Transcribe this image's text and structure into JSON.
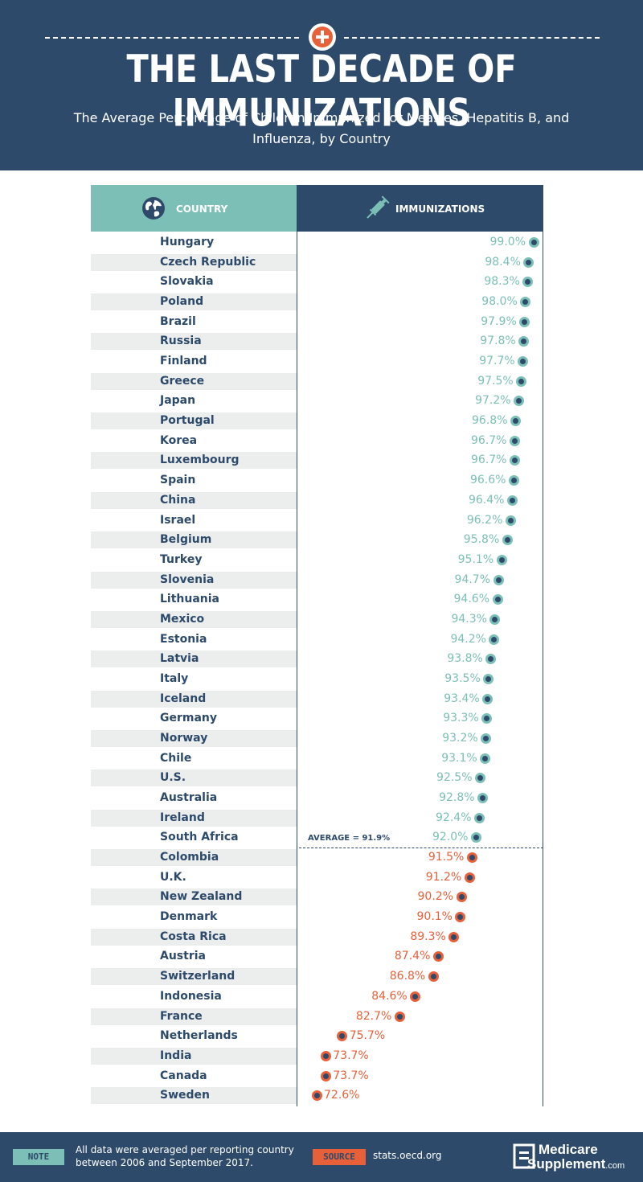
{
  "header": {
    "title": "THE LAST DECADE OF IMMUNIZATIONS",
    "subtitle": "The Average Percentage of Children Immunized for Measles, Hepatitis B, and Influenza, by Country"
  },
  "table": {
    "country_header": "COUNTRY",
    "immunizations_header": "IMMUNIZATIONS",
    "average_label": "AVERAGE = 91.9%"
  },
  "colors": {
    "navy": "#2d4a6b",
    "teal": "#7bbfb6",
    "orange": "#e8603a",
    "above_average": "#7bbfb6",
    "below_average": "#e8603a"
  },
  "chart_data": {
    "type": "scatter",
    "title": "THE LAST DECADE OF IMMUNIZATIONS",
    "subtitle": "The Average Percentage of Children Immunized for Measles, Hepatitis B, and Influenza, by Country",
    "average": 91.9,
    "unit": "%",
    "categories": [
      "Hungary",
      "Czech Republic",
      "Slovakia",
      "Poland",
      "Brazil",
      "Russia",
      "Finland",
      "Greece",
      "Japan",
      "Portugal",
      "Korea",
      "Luxembourg",
      "Spain",
      "China",
      "Israel",
      "Belgium",
      "Turkey",
      "Slovenia",
      "Lithuania",
      "Mexico",
      "Estonia",
      "Latvia",
      "Italy",
      "Iceland",
      "Germany",
      "Norway",
      "Chile",
      "U.S.",
      "Australia",
      "Ireland",
      "South Africa",
      "Colombia",
      "U.K.",
      "New Zealand",
      "Denmark",
      "Costa Rica",
      "Austria",
      "Switzerland",
      "Indonesia",
      "France",
      "Netherlands",
      "India",
      "Canada",
      "Sweden"
    ],
    "values": [
      99.0,
      98.4,
      98.3,
      98.0,
      97.9,
      97.8,
      97.7,
      97.5,
      97.2,
      96.8,
      96.7,
      96.7,
      96.6,
      96.4,
      96.2,
      95.8,
      95.1,
      94.7,
      94.6,
      94.3,
      94.2,
      93.8,
      93.5,
      93.4,
      93.3,
      93.2,
      93.1,
      92.5,
      92.8,
      92.4,
      92.0,
      91.5,
      91.2,
      90.2,
      90.1,
      89.3,
      87.4,
      86.8,
      84.6,
      82.7,
      75.7,
      73.7,
      73.7,
      72.6
    ],
    "labels": [
      "99.0%",
      "98.4%",
      "98.3%",
      "98.0%",
      "97.9%",
      "97.8%",
      "97.7%",
      "97.5%",
      "97.2%",
      "96.8%",
      "96.7%",
      "96.7%",
      "96.6%",
      "96.4%",
      "96.2%",
      "95.8%",
      "95.1%",
      "94.7%",
      "94.6%",
      "94.3%",
      "94.2%",
      "93.8%",
      "93.5%",
      "93.4%",
      "93.3%",
      "93.2%",
      "93.1%",
      "92.5%",
      "92.8%",
      "92.4%",
      "92.0%",
      "91.5%",
      "91.2%",
      "90.2%",
      "90.1%",
      "89.3%",
      "87.4%",
      "86.8%",
      "84.6%",
      "82.7%",
      "75.7%",
      "73.7%",
      "73.7%",
      "72.6%"
    ],
    "xlim": [
      72.6,
      99.0
    ]
  },
  "footer": {
    "note_label": "NOTE",
    "note_text": "All data were averaged per reporting country between 2006 and September 2017.",
    "source_label": "SOURCE",
    "source_text": "stats.oecd.org",
    "logo_line1": "Medicare",
    "logo_line2": "Supplement",
    "logo_suffix": ".com"
  }
}
